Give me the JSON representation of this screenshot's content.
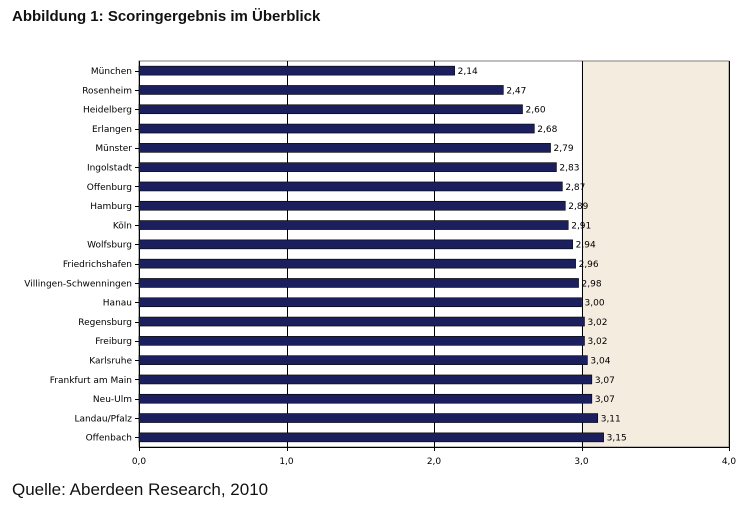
{
  "title": "Abbildung 1: Scoringergebnis im Überblick",
  "source": "Quelle: Aberdeen Research, 2010",
  "colors": {
    "bar": "#1b1f5e",
    "shade": "#f5ece0",
    "frame": "#7f7f7f",
    "grid": "#000000"
  },
  "chart_data": {
    "type": "bar",
    "orientation": "horizontal",
    "categories": [
      "München",
      "Rosenheim",
      "Heidelberg",
      "Erlangen",
      "Münster",
      "Ingolstadt",
      "Offenburg",
      "Hamburg",
      "Köln",
      "Wolfsburg",
      "Friedrichshafen",
      "Villingen-Schwenningen",
      "Hanau",
      "Regensburg",
      "Freiburg",
      "Karlsruhe",
      "Frankfurt am Main",
      "Neu-Ulm",
      "Landau/Pfalz",
      "Offenbach"
    ],
    "values": [
      2.14,
      2.47,
      2.6,
      2.68,
      2.79,
      2.83,
      2.87,
      2.89,
      2.91,
      2.94,
      2.96,
      2.98,
      3.0,
      3.02,
      3.02,
      3.04,
      3.07,
      3.07,
      3.11,
      3.15
    ],
    "value_labels": [
      "2,14",
      "2,47",
      "2,60",
      "2,68",
      "2,79",
      "2,83",
      "2,87",
      "2,89",
      "2,91",
      "2,94",
      "2,96",
      "2,98",
      "3,00",
      "3,02",
      "3,02",
      "3,04",
      "3,07",
      "3,07",
      "3,11",
      "3,15"
    ],
    "xlim": [
      0,
      4
    ],
    "xticks": [
      0,
      1,
      2,
      3,
      4
    ],
    "xtick_labels": [
      "0,0",
      "1,0",
      "2,0",
      "3,0",
      "4,0"
    ],
    "shaded_range": [
      3,
      4
    ],
    "grid": true,
    "xlabel": "",
    "ylabel": ""
  }
}
